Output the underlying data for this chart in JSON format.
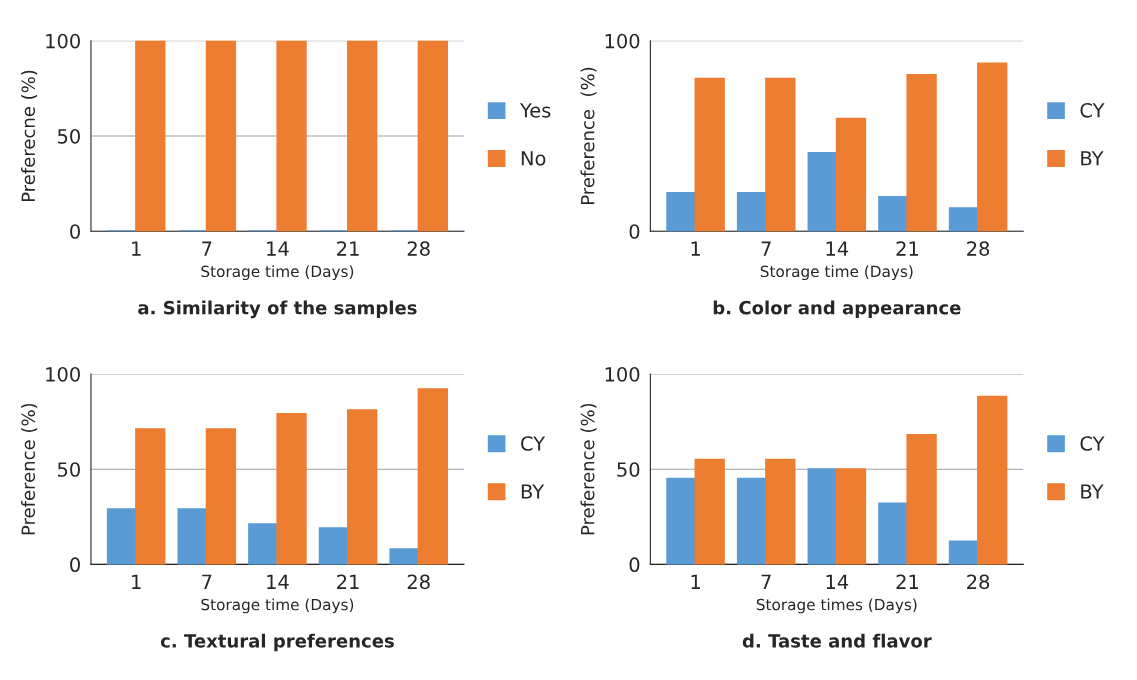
{
  "chart_data": [
    {
      "type": "bar",
      "title": "a. Similarity of the samples",
      "xlabel": "Storage time (Days)",
      "ylabel": "Preferecne (%)",
      "categories": [
        "1",
        "7",
        "14",
        "21",
        "28"
      ],
      "series": [
        {
          "name": "Yes",
          "color": "#5b9bd5",
          "values": [
            0,
            0,
            0,
            0,
            0
          ]
        },
        {
          "name": "No",
          "color": "#ed7d31",
          "values": [
            100,
            100,
            100,
            100,
            100
          ]
        }
      ],
      "ylim": [
        0,
        100
      ],
      "yticks": [
        0,
        50,
        100
      ],
      "grid": "y",
      "legend": "right"
    },
    {
      "type": "bar",
      "title": "b. Color and appearance",
      "xlabel": "Storage time (Days)",
      "ylabel": "Preference  (%)",
      "categories": [
        "1",
        "7",
        "14",
        "21",
        "28"
      ],
      "series": [
        {
          "name": "CY",
          "color": "#5b9bd5",
          "values": [
            20,
            20,
            41,
            18,
            12
          ]
        },
        {
          "name": "BY",
          "color": "#ed7d31",
          "values": [
            80,
            80,
            59,
            82,
            88
          ]
        }
      ],
      "ylim": [
        0,
        100
      ],
      "yticks": [
        0,
        100
      ],
      "grid": "y",
      "legend": "right"
    },
    {
      "type": "bar",
      "title": "c. Textural preferences",
      "xlabel": "Storage time (Days)",
      "ylabel": "Preference (%)",
      "categories": [
        "1",
        "7",
        "14",
        "21",
        "28"
      ],
      "series": [
        {
          "name": "CY",
          "color": "#5b9bd5",
          "values": [
            29,
            29,
            21,
            19,
            8
          ]
        },
        {
          "name": "BY",
          "color": "#ed7d31",
          "values": [
            71,
            71,
            79,
            81,
            92
          ]
        }
      ],
      "ylim": [
        0,
        100
      ],
      "yticks": [
        0,
        50,
        100
      ],
      "grid": "y",
      "legend": "right"
    },
    {
      "type": "bar",
      "title": "d. Taste and flavor",
      "xlabel": "Storage times (Days)",
      "ylabel": "Preference (%)",
      "categories": [
        "1",
        "7",
        "14",
        "21",
        "28"
      ],
      "series": [
        {
          "name": "CY",
          "color": "#5b9bd5",
          "values": [
            45,
            45,
            50,
            32,
            12
          ]
        },
        {
          "name": "BY",
          "color": "#ed7d31",
          "values": [
            55,
            55,
            50,
            68,
            88
          ]
        }
      ],
      "ylim": [
        0,
        100
      ],
      "yticks": [
        0,
        50,
        100
      ],
      "grid": "y",
      "legend": "right"
    }
  ]
}
